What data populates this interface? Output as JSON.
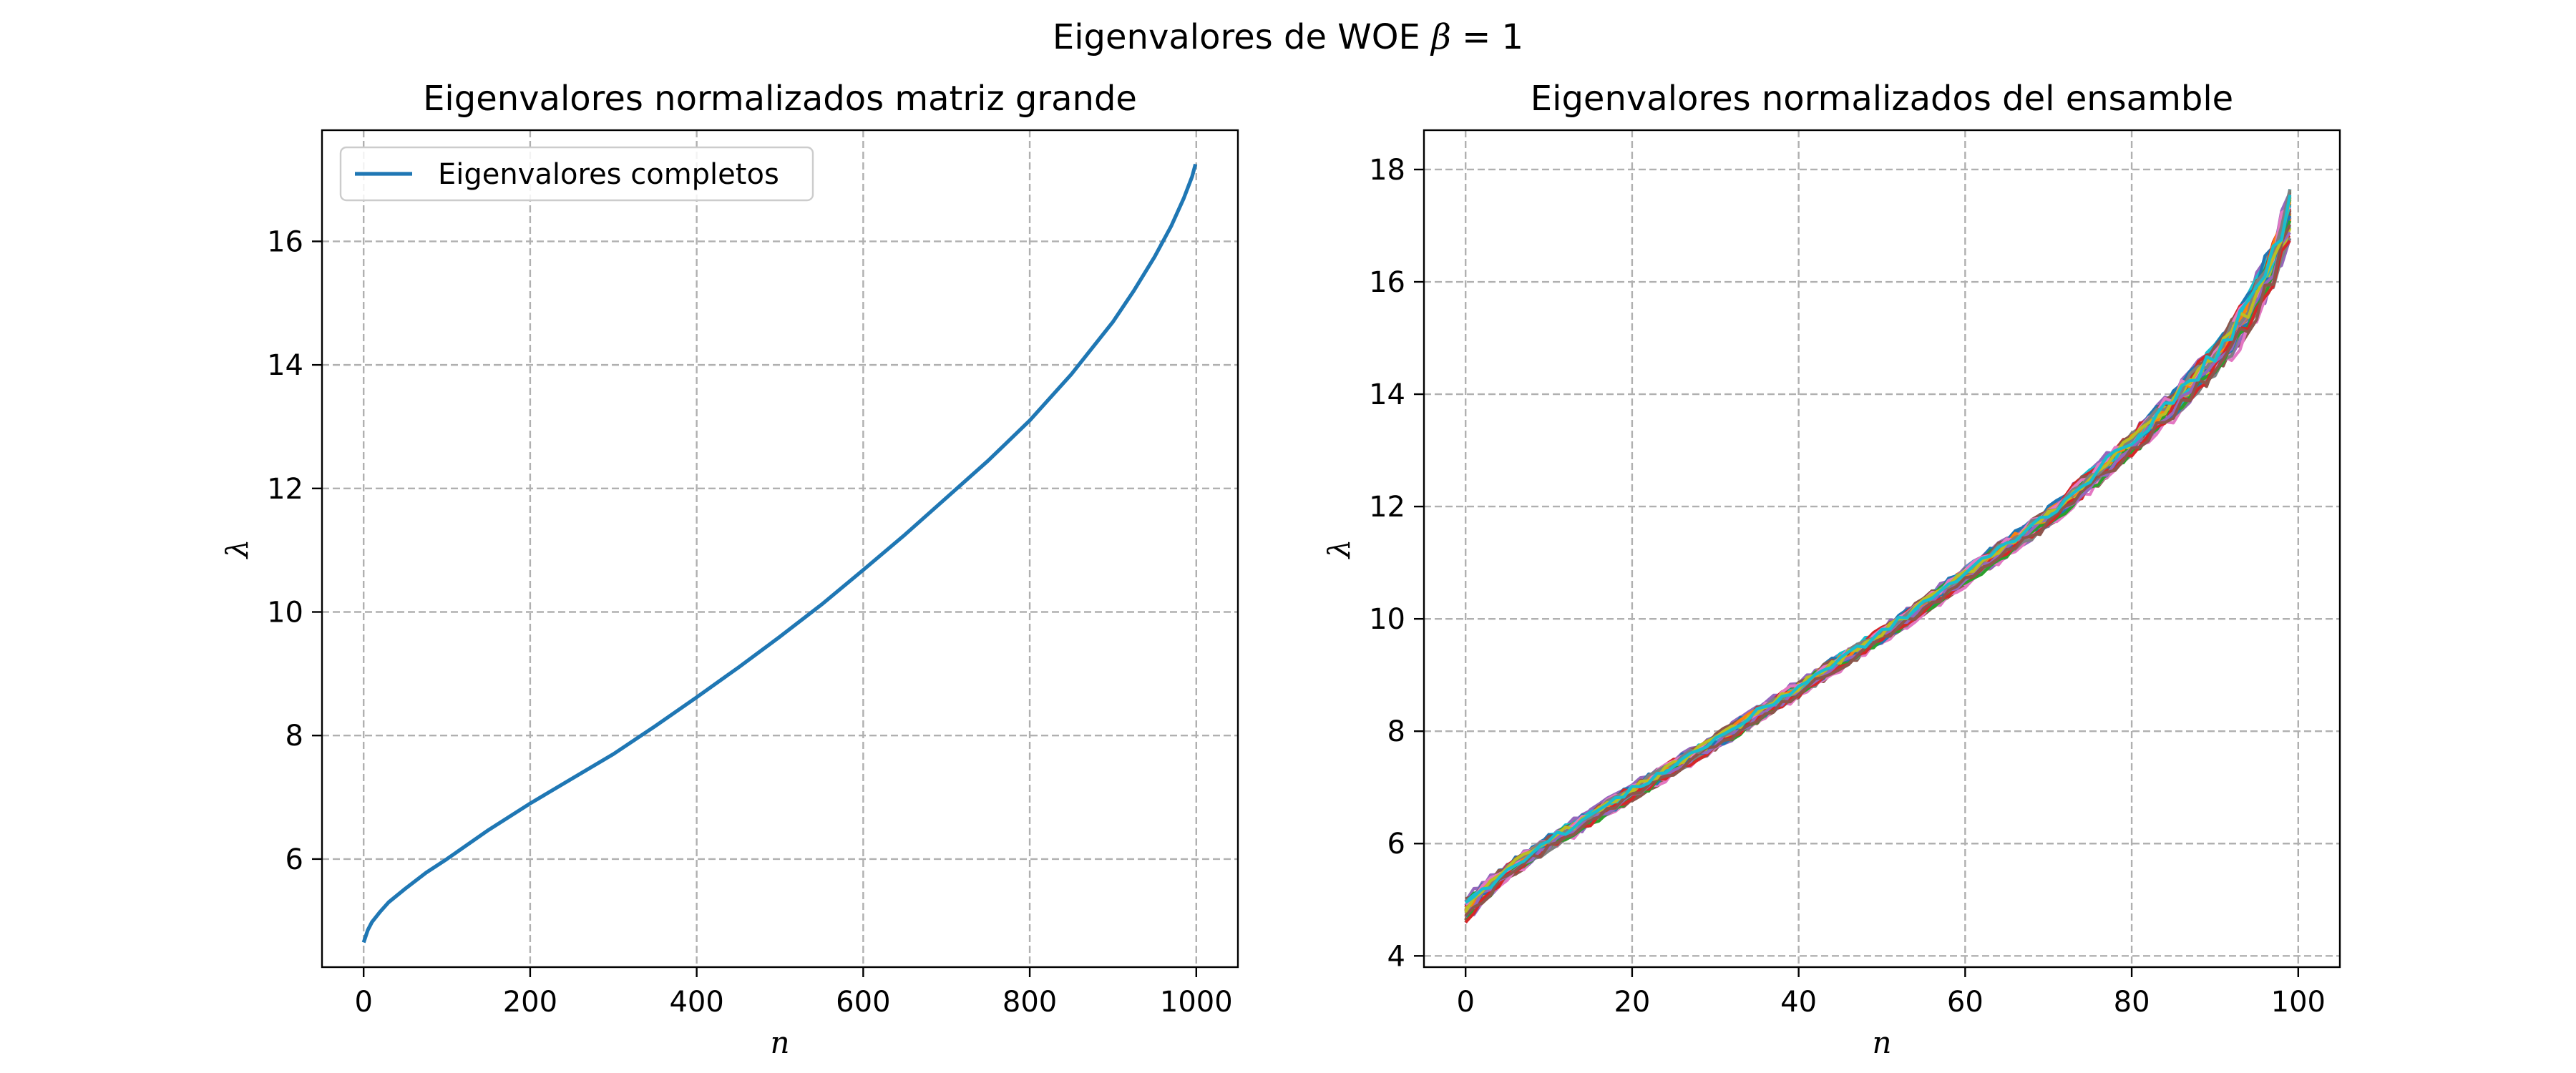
{
  "figure": {
    "suptitle_text": "Eigenvalores de WOE ",
    "suptitle_beta": "β",
    "suptitle_tail": " = 1"
  },
  "colors": {
    "left_series": "#1f77b4",
    "palette": [
      "#1f77b4",
      "#ff7f0e",
      "#2ca02c",
      "#d62728",
      "#9467bd",
      "#8c564b",
      "#e377c2",
      "#7f7f7f",
      "#bcbd22",
      "#17becf"
    ]
  },
  "chart_data": [
    {
      "type": "line",
      "title": "Eigenvalores normalizados matriz grande",
      "xlabel": "n",
      "ylabel": "λ",
      "xlim": [
        -50,
        1050
      ],
      "ylim": [
        4.25,
        17.8
      ],
      "xticks": [
        0,
        200,
        400,
        600,
        800,
        1000
      ],
      "yticks": [
        6,
        8,
        10,
        12,
        14,
        16
      ],
      "grid": true,
      "legend": {
        "placement": "upper-left",
        "entries": [
          "Eigenvalores completos"
        ]
      },
      "series": [
        {
          "name": "Eigenvalores completos",
          "x": [
            0,
            5,
            10,
            20,
            30,
            50,
            75,
            100,
            150,
            200,
            250,
            300,
            350,
            400,
            450,
            500,
            550,
            600,
            650,
            700,
            750,
            800,
            850,
            900,
            925,
            950,
            970,
            985,
            995,
            999
          ],
          "y": [
            4.65,
            4.85,
            4.98,
            5.15,
            5.3,
            5.52,
            5.78,
            6.0,
            6.47,
            6.9,
            7.3,
            7.7,
            8.15,
            8.62,
            9.1,
            9.6,
            10.12,
            10.68,
            11.25,
            11.85,
            12.45,
            13.1,
            13.85,
            14.7,
            15.2,
            15.75,
            16.25,
            16.7,
            17.05,
            17.25
          ]
        }
      ]
    },
    {
      "type": "line",
      "title": "Eigenvalores normalizados del ensamble",
      "xlabel": "n",
      "ylabel": "λ",
      "xlim": [
        -5,
        105
      ],
      "ylim": [
        3.8,
        18.7
      ],
      "xticks": [
        0,
        20,
        40,
        60,
        80,
        100
      ],
      "yticks": [
        4,
        6,
        8,
        10,
        12,
        14,
        16,
        18
      ],
      "grid": true,
      "ensemble": {
        "members": 50,
        "x": [
          0,
          2,
          5,
          10,
          15,
          20,
          30,
          40,
          50,
          60,
          70,
          80,
          85,
          90,
          94,
          97,
          99
        ],
        "y_mean": [
          4.8,
          5.1,
          5.5,
          6.0,
          6.45,
          6.9,
          7.8,
          8.75,
          9.7,
          10.75,
          11.8,
          13.1,
          13.8,
          14.6,
          15.4,
          16.3,
          17.2
        ],
        "spread": [
          0.3,
          0.25,
          0.2,
          0.2,
          0.2,
          0.2,
          0.2,
          0.2,
          0.2,
          0.22,
          0.25,
          0.3,
          0.35,
          0.4,
          0.5,
          0.6,
          0.7
        ]
      }
    }
  ]
}
